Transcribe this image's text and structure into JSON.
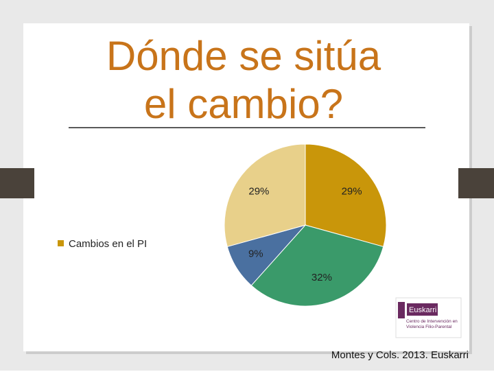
{
  "chart_data": {
    "type": "pie",
    "title": "Dónde se sitúa el cambio?",
    "series": [
      {
        "name": "Cambios en el PI",
        "color": "#c9960a",
        "values": [
          29,
          32,
          9,
          29
        ],
        "value_labels": [
          "29%",
          "32%",
          "9%",
          "29%"
        ],
        "colors": [
          "#c9960a",
          "#3a9a6a",
          "#4a70a0",
          "#e8d08a"
        ]
      }
    ]
  },
  "logo": {
    "name": "Euskarri",
    "subtitle": "Centro de Intervención en Violencia Filio-Parental"
  },
  "source": "Montes y Cols. 2013. Euskarri"
}
